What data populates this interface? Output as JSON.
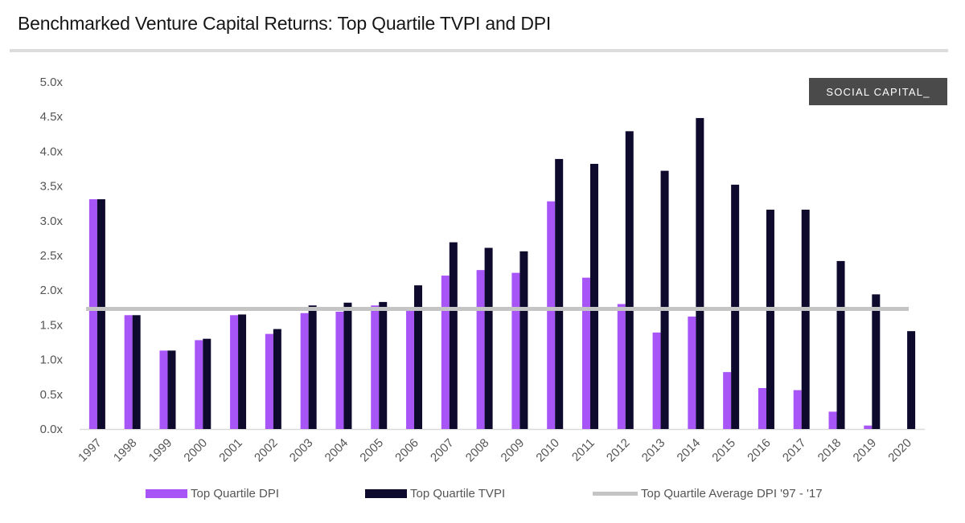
{
  "header": {
    "title": "Benchmarked Venture Capital Returns: Top Quartile TVPI and DPI"
  },
  "brand": {
    "label": "SOCIAL CAPITAL_"
  },
  "colors": {
    "dpi": "#a855f7",
    "tvpi": "#0d0a2e",
    "average": "#c4c4c4",
    "brand_bg": "#4a4a4a"
  },
  "chart_data": {
    "type": "bar",
    "title": "Benchmarked Venture Capital Returns: Top Quartile TVPI and DPI",
    "xlabel": "",
    "ylabel": "",
    "ylim": [
      0,
      5.0
    ],
    "yticks": [
      "0.0x",
      "0.5x",
      "1.0x",
      "1.5x",
      "2.0x",
      "2.5x",
      "3.0x",
      "3.5x",
      "4.0x",
      "4.5x",
      "5.0x"
    ],
    "categories": [
      "1997",
      "1998",
      "1999",
      "2000",
      "2001",
      "2002",
      "2003",
      "2004",
      "2005",
      "2006",
      "2007",
      "2008",
      "2009",
      "2010",
      "2011",
      "2012",
      "2013",
      "2014",
      "2015",
      "2016",
      "2017",
      "2018",
      "2019",
      "2020"
    ],
    "series": [
      {
        "name": "Top Quartile DPI",
        "kind": "bar",
        "values": [
          3.31,
          1.64,
          1.13,
          1.28,
          1.64,
          1.37,
          1.67,
          1.69,
          1.78,
          1.71,
          2.21,
          2.29,
          2.25,
          3.28,
          2.18,
          1.8,
          1.39,
          1.62,
          0.82,
          0.59,
          0.56,
          0.25,
          0.05,
          0
        ]
      },
      {
        "name": "Top Quartile TVPI",
        "kind": "bar",
        "values": [
          3.31,
          1.64,
          1.13,
          1.3,
          1.65,
          1.44,
          1.78,
          1.82,
          1.83,
          2.07,
          2.69,
          2.61,
          2.56,
          3.89,
          3.82,
          4.29,
          3.72,
          4.48,
          3.52,
          3.16,
          3.16,
          2.42,
          1.94,
          1.41
        ]
      },
      {
        "name": "Top Quartile Average DPI '97 - '17",
        "kind": "line",
        "value": 1.73
      }
    ],
    "legend_position": "bottom",
    "grid": false
  }
}
